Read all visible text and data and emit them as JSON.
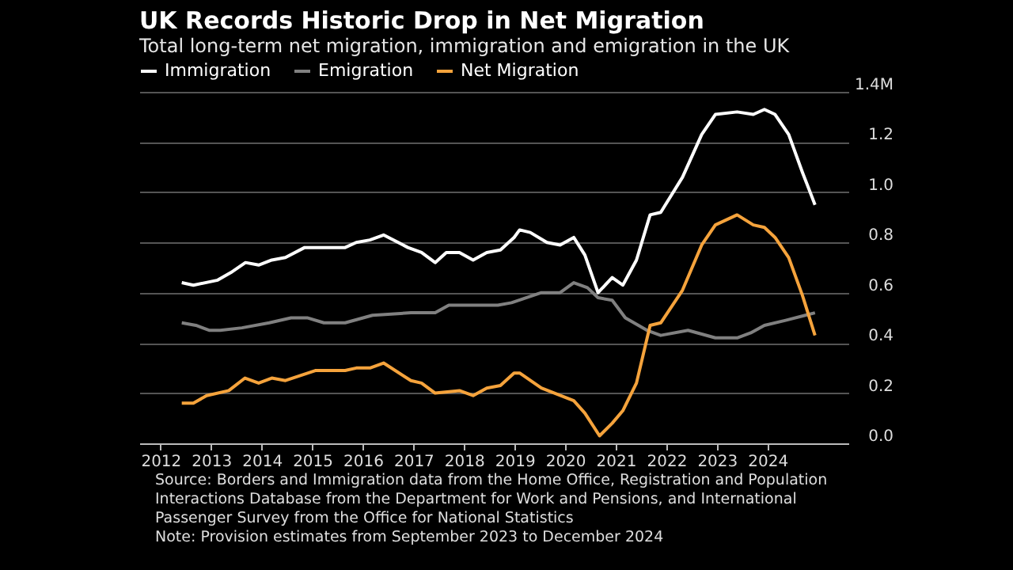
{
  "chart_data": {
    "type": "line",
    "title": "UK Records Historic Drop in Net Migration",
    "subtitle": "Total long-term net migration, immigration and emigration in the UK",
    "xlim": [
      2011.58,
      2025.6
    ],
    "xticks": [
      2012,
      2013,
      2014,
      2015,
      2016,
      2017,
      2018,
      2019,
      2020,
      2021,
      2022,
      2023,
      2024
    ],
    "ylim": [
      0,
      1.4
    ],
    "yticks": [
      {
        "value": 0,
        "label": "0.0"
      },
      {
        "value": 0.2,
        "label": "0.2"
      },
      {
        "value": 0.4,
        "label": "0.4"
      },
      {
        "value": 0.6,
        "label": "0.6"
      },
      {
        "value": 0.8,
        "label": "0.8"
      },
      {
        "value": 1,
        "label": "1.0"
      },
      {
        "value": 1.2,
        "label": "1.2"
      },
      {
        "value": 1.4,
        "label": "1.4M"
      }
    ],
    "grid": "y",
    "legend": "top left",
    "series": [
      {
        "name": "Immigration",
        "color": "#ffffff",
        "x": [
          2012.42,
          2012.65,
          2013.13,
          2013.39,
          2013.68,
          2013.94,
          2014.2,
          2014.47,
          2014.85,
          2015.12,
          2015.65,
          2015.87,
          2016.14,
          2016.41,
          2016.89,
          2017.16,
          2017.43,
          2017.65,
          2017.91,
          2018.18,
          2018.45,
          2018.72,
          2018.99,
          2019.1,
          2019.31,
          2019.64,
          2019.9,
          2020.17,
          2020.39,
          2020.65,
          2020.93,
          2021.14,
          2021.41,
          2021.68,
          2021.89,
          2022.32,
          2022.7,
          2022.97,
          2023.4,
          2023.72,
          2023.94,
          2024.15,
          2024.42,
          2024.69,
          2024.94
        ],
        "values": [
          0.64,
          0.63,
          0.65,
          0.68,
          0.72,
          0.71,
          0.73,
          0.74,
          0.78,
          0.78,
          0.78,
          0.8,
          0.81,
          0.83,
          0.78,
          0.76,
          0.72,
          0.76,
          0.76,
          0.73,
          0.76,
          0.77,
          0.82,
          0.85,
          0.84,
          0.8,
          0.79,
          0.82,
          0.75,
          0.6,
          0.66,
          0.63,
          0.73,
          0.91,
          0.92,
          1.06,
          1.23,
          1.31,
          1.32,
          1.31,
          1.33,
          1.31,
          1.23,
          1.08,
          0.95
        ]
      },
      {
        "name": "Emigration",
        "color": "#808080",
        "x": [
          2012.42,
          2012.7,
          2012.97,
          2013.18,
          2013.61,
          2014.15,
          2014.58,
          2014.9,
          2015.23,
          2015.65,
          2016.19,
          2016.95,
          2017.43,
          2017.7,
          2018.67,
          2018.94,
          2019.53,
          2019.9,
          2020.17,
          2020.44,
          2020.65,
          2020.93,
          2021.19,
          2021.62,
          2021.89,
          2022.43,
          2022.97,
          2023.4,
          2023.67,
          2023.94,
          2024.36,
          2024.94
        ],
        "values": [
          0.48,
          0.47,
          0.45,
          0.45,
          0.46,
          0.48,
          0.5,
          0.5,
          0.48,
          0.48,
          0.51,
          0.52,
          0.52,
          0.55,
          0.55,
          0.56,
          0.6,
          0.6,
          0.64,
          0.62,
          0.58,
          0.57,
          0.5,
          0.45,
          0.43,
          0.45,
          0.42,
          0.42,
          0.44,
          0.47,
          0.49,
          0.52
        ]
      },
      {
        "name": "Net Migration",
        "color": "#f5a33c",
        "x": [
          2012.42,
          2012.65,
          2012.91,
          2013.35,
          2013.67,
          2013.94,
          2014.2,
          2014.47,
          2015.06,
          2015.65,
          2015.87,
          2016.14,
          2016.41,
          2016.95,
          2017.16,
          2017.43,
          2017.91,
          2018.18,
          2018.45,
          2018.72,
          2018.99,
          2019.1,
          2019.53,
          2020.17,
          2020.39,
          2020.68,
          2020.93,
          2021.14,
          2021.41,
          2021.68,
          2021.89,
          2022.32,
          2022.7,
          2022.97,
          2023.4,
          2023.72,
          2023.94,
          2024.15,
          2024.42,
          2024.69,
          2024.94
        ],
        "values": [
          0.16,
          0.16,
          0.19,
          0.21,
          0.26,
          0.24,
          0.26,
          0.25,
          0.29,
          0.29,
          0.3,
          0.3,
          0.32,
          0.25,
          0.24,
          0.2,
          0.21,
          0.19,
          0.22,
          0.23,
          0.28,
          0.28,
          0.22,
          0.17,
          0.12,
          0.03,
          0.08,
          0.13,
          0.24,
          0.47,
          0.48,
          0.61,
          0.79,
          0.87,
          0.91,
          0.87,
          0.86,
          0.82,
          0.74,
          0.59,
          0.43
        ]
      }
    ],
    "annotations": [
      "Source: Borders and Immigration data from the Home Office, Registration and Population Interactions Database from the Department for Work and Pensions, and International Passenger Survey from the Office for National Statistics",
      "Note: Provision estimates from September 2023 to December 2024"
    ]
  }
}
